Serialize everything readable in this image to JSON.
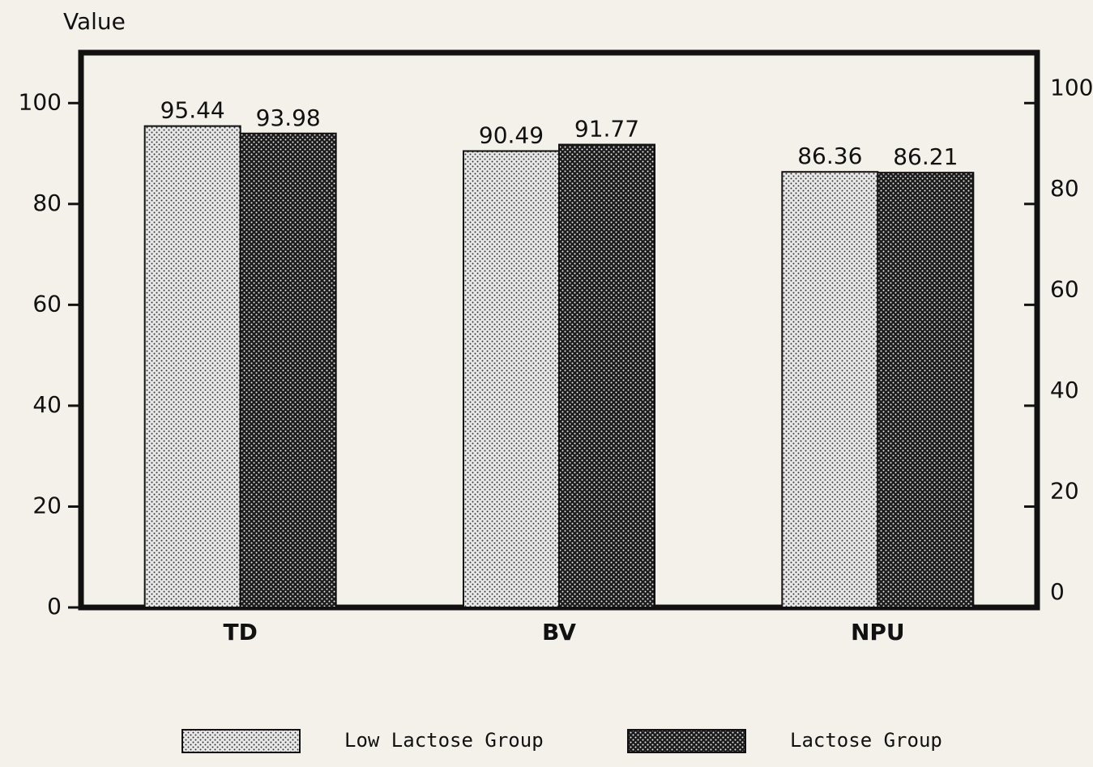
{
  "chart_data": {
    "type": "bar",
    "y_label": "Value",
    "categories": [
      "TD",
      "BV",
      "NPU"
    ],
    "series": [
      {
        "name": "Low Lactose Group",
        "color": "#e8e8e8",
        "values": [
          95.44,
          90.49,
          86.36
        ]
      },
      {
        "name": "Lactose Group",
        "color": "#1c1c1c",
        "values": [
          93.98,
          91.77,
          86.21
        ]
      }
    ],
    "ylim": [
      0,
      110
    ],
    "yticks": [
      0,
      20,
      40,
      60,
      80,
      100
    ],
    "y2lim": [
      0,
      110
    ],
    "y2ticks": [
      0,
      20,
      40,
      60,
      80,
      100
    ]
  }
}
